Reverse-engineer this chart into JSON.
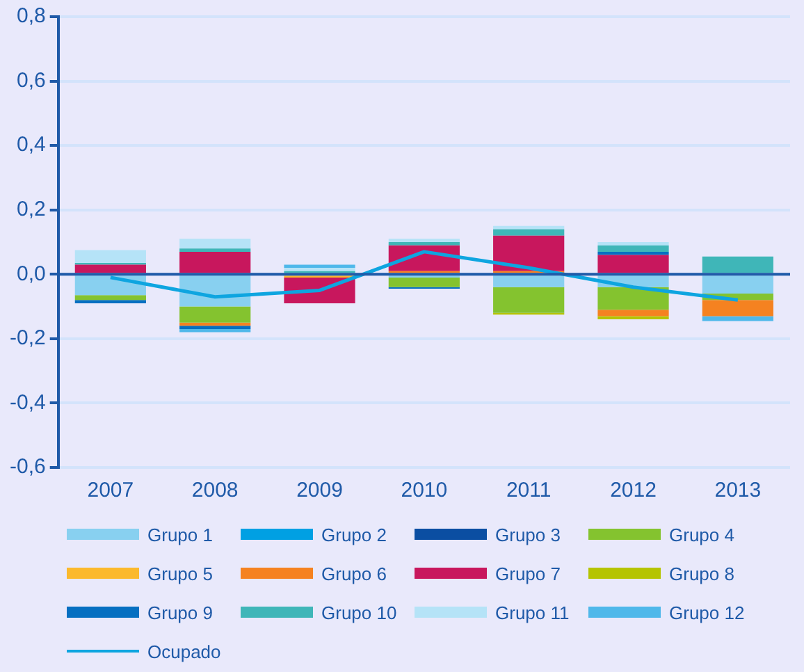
{
  "chart_data": {
    "type": "bar",
    "stacked": true,
    "categories": [
      "2007",
      "2008",
      "2009",
      "2010",
      "2011",
      "2012",
      "2013"
    ],
    "ylim": [
      -0.6,
      0.8
    ],
    "yticks": [
      {
        "value": -0.6,
        "label": "-0,6"
      },
      {
        "value": -0.4,
        "label": "-0,4"
      },
      {
        "value": -0.2,
        "label": "-0,2"
      },
      {
        "value": 0,
        "label": "0,0"
      },
      {
        "value": 0.2,
        "label": "0,2"
      },
      {
        "value": 0.4,
        "label": "0,4"
      },
      {
        "value": 0.6,
        "label": "0,6"
      },
      {
        "value": 0.8,
        "label": "0,8"
      }
    ],
    "grid": "y",
    "legend": "bottom",
    "ref_lines": [
      {
        "axis": "y",
        "value": 0,
        "color": "#1f5aa8"
      }
    ],
    "series": [
      {
        "name": "Grupo 1",
        "color": "#88d0f0",
        "values": [
          -0.065,
          -0.1,
          null,
          -0.01,
          -0.04,
          -0.04,
          -0.06
        ]
      },
      {
        "name": "Grupo 2",
        "color": "#00a0e3",
        "values": [
          null,
          null,
          null,
          null,
          null,
          null,
          null
        ]
      },
      {
        "name": "Grupo 3",
        "color": "#0b4ea2",
        "values": [
          null,
          null,
          null,
          null,
          null,
          null,
          null
        ]
      },
      {
        "name": "Grupo 4",
        "color": "#84c32f",
        "values": [
          -0.015,
          -0.05,
          null,
          -0.03,
          -0.08,
          -0.07,
          -0.02
        ]
      },
      {
        "name": "Grupo 5",
        "color": "#fbb92c",
        "values": [
          null,
          null,
          -0.01,
          null,
          null,
          null,
          null
        ]
      },
      {
        "name": "Grupo 6",
        "color": "#f58220",
        "values": [
          null,
          -0.01,
          null,
          0.01,
          0.01,
          -0.02,
          -0.05
        ]
      },
      {
        "name": "Grupo 7",
        "color": "#c8175d",
        "values": [
          0.03,
          0.07,
          -0.08,
          0.08,
          0.11,
          0.06,
          null
        ]
      },
      {
        "name": "Grupo 8",
        "color": "#b5c400",
        "values": [
          null,
          null,
          null,
          null,
          -0.005,
          -0.01,
          null
        ]
      },
      {
        "name": "Grupo 9",
        "color": "#066fc1",
        "values": [
          -0.01,
          -0.01,
          null,
          -0.005,
          null,
          0.01,
          null
        ]
      },
      {
        "name": "Grupo 10",
        "color": "#3fb6b8",
        "values": [
          0.005,
          0.01,
          0.01,
          0.01,
          0.02,
          0.02,
          0.055
        ]
      },
      {
        "name": "Grupo 11",
        "color": "#b5e3f7",
        "values": [
          0.04,
          0.03,
          0.01,
          0.01,
          0.01,
          0.01,
          null
        ]
      },
      {
        "name": "Grupo 12",
        "color": "#4fb8ea",
        "values": [
          null,
          -0.01,
          0.01,
          null,
          null,
          null,
          -0.015
        ]
      },
      {
        "name": "Ocupado",
        "type": "line",
        "color": "#0ea5e0",
        "values": [
          -0.01,
          -0.07,
          -0.05,
          0.07,
          0.02,
          -0.04,
          -0.08
        ]
      }
    ]
  }
}
